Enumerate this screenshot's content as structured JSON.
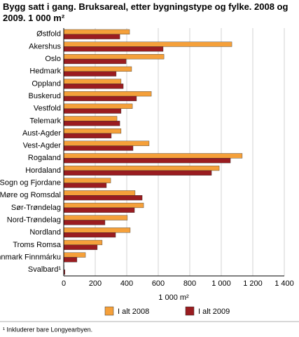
{
  "chart_data": {
    "type": "hbar",
    "title": "Bygg satt i gang. Bruksareal, etter bygningstype og fylke. 2008 og 2009. 1 000 m²",
    "x_label": "1 000 m²",
    "footnote": "¹ Inkluderer bare Longyearbyen.",
    "categories": [
      "Østfold",
      "Akershus",
      "Oslo",
      "Hedmark",
      "Oppland",
      "Buskerud",
      "Vestfold",
      "Telemark",
      "Aust-Agder",
      "Vest-Agder",
      "Rogaland",
      "Hordaland",
      "Sogn og Fjordane",
      "Møre og Romsdal",
      "Sør-Trøndelag",
      "Nord-Trøndelag",
      "Nordland",
      "Troms Romsa",
      "Finnmark Finnmárku",
      "Svalbard¹"
    ],
    "series": [
      {
        "name": "I alt 2008",
        "color": "#f5a03a",
        "values": [
          418,
          1067,
          636,
          431,
          364,
          556,
          436,
          338,
          364,
          542,
          1133,
          987,
          298,
          453,
          507,
          404,
          422,
          244,
          138,
          2
        ]
      },
      {
        "name": "I alt 2009",
        "color": "#9a1c20",
        "values": [
          356,
          631,
          396,
          333,
          378,
          462,
          364,
          356,
          302,
          440,
          1058,
          938,
          271,
          498,
          449,
          262,
          329,
          213,
          84,
          8
        ]
      }
    ],
    "xlim": [
      0,
      1400
    ],
    "xticks": [
      0,
      200,
      400,
      600,
      800,
      {
        "value": 1000,
        "label": "1 000"
      },
      {
        "value": 1200,
        "label": "1 200"
      },
      {
        "value": 1400,
        "label": "1 400"
      }
    ],
    "grid": true
  }
}
